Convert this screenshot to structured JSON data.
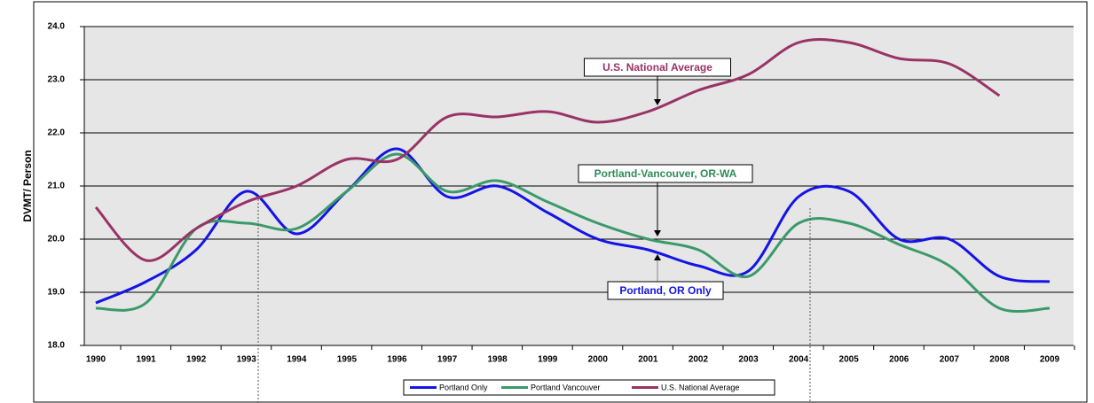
{
  "chart_data": {
    "type": "line",
    "y_label": "DVMT/ Person",
    "categories": [
      "1990",
      "1991",
      "1992",
      "1993",
      "1994",
      "1995",
      "1996",
      "1997",
      "1998",
      "1999",
      "2000",
      "2001",
      "2002",
      "2003",
      "2004",
      "2005",
      "2006",
      "2007",
      "2008",
      "2009"
    ],
    "series": [
      {
        "name": "Portland Only",
        "color": "#1414e6",
        "values": [
          18.8,
          19.2,
          19.8,
          20.9,
          20.1,
          20.9,
          21.7,
          20.8,
          21.0,
          20.5,
          20.0,
          19.8,
          19.5,
          19.4,
          20.8,
          20.9,
          20.0,
          20.0,
          19.3,
          19.2
        ]
      },
      {
        "name": "Portland Vancouver",
        "color": "#3a9a6a",
        "values": [
          18.7,
          18.8,
          20.2,
          20.3,
          20.2,
          20.9,
          21.6,
          20.9,
          21.1,
          20.7,
          20.3,
          20.0,
          19.8,
          19.3,
          20.3,
          20.3,
          19.9,
          19.5,
          18.7,
          18.7
        ]
      },
      {
        "name": "U.S. National Average",
        "color": "#993366",
        "values": [
          20.6,
          19.6,
          20.2,
          20.7,
          21.0,
          21.5,
          21.5,
          22.3,
          22.3,
          22.4,
          22.2,
          22.4,
          22.8,
          23.1,
          23.7,
          23.7,
          23.4,
          23.3,
          22.7,
          null
        ]
      }
    ],
    "annotations": [
      {
        "text": "U.S. National Average",
        "color": "#993366"
      },
      {
        "text": "Portland-Vancouver, OR-WA",
        "color": "#2e8b57"
      },
      {
        "text": "Portland, OR Only",
        "color": "#1414e6"
      }
    ],
    "ylim": [
      18,
      24
    ],
    "yticks": [
      {
        "value": 18,
        "label": "18.0"
      },
      {
        "value": 19,
        "label": "19.0"
      },
      {
        "value": 20,
        "label": "20.0"
      },
      {
        "value": 21,
        "label": "21.0"
      },
      {
        "value": 22,
        "label": "22.0"
      },
      {
        "value": 23,
        "label": "23.0"
      },
      {
        "value": 24,
        "label": "24.0"
      }
    ],
    "grid": true,
    "legend": "bottom"
  }
}
